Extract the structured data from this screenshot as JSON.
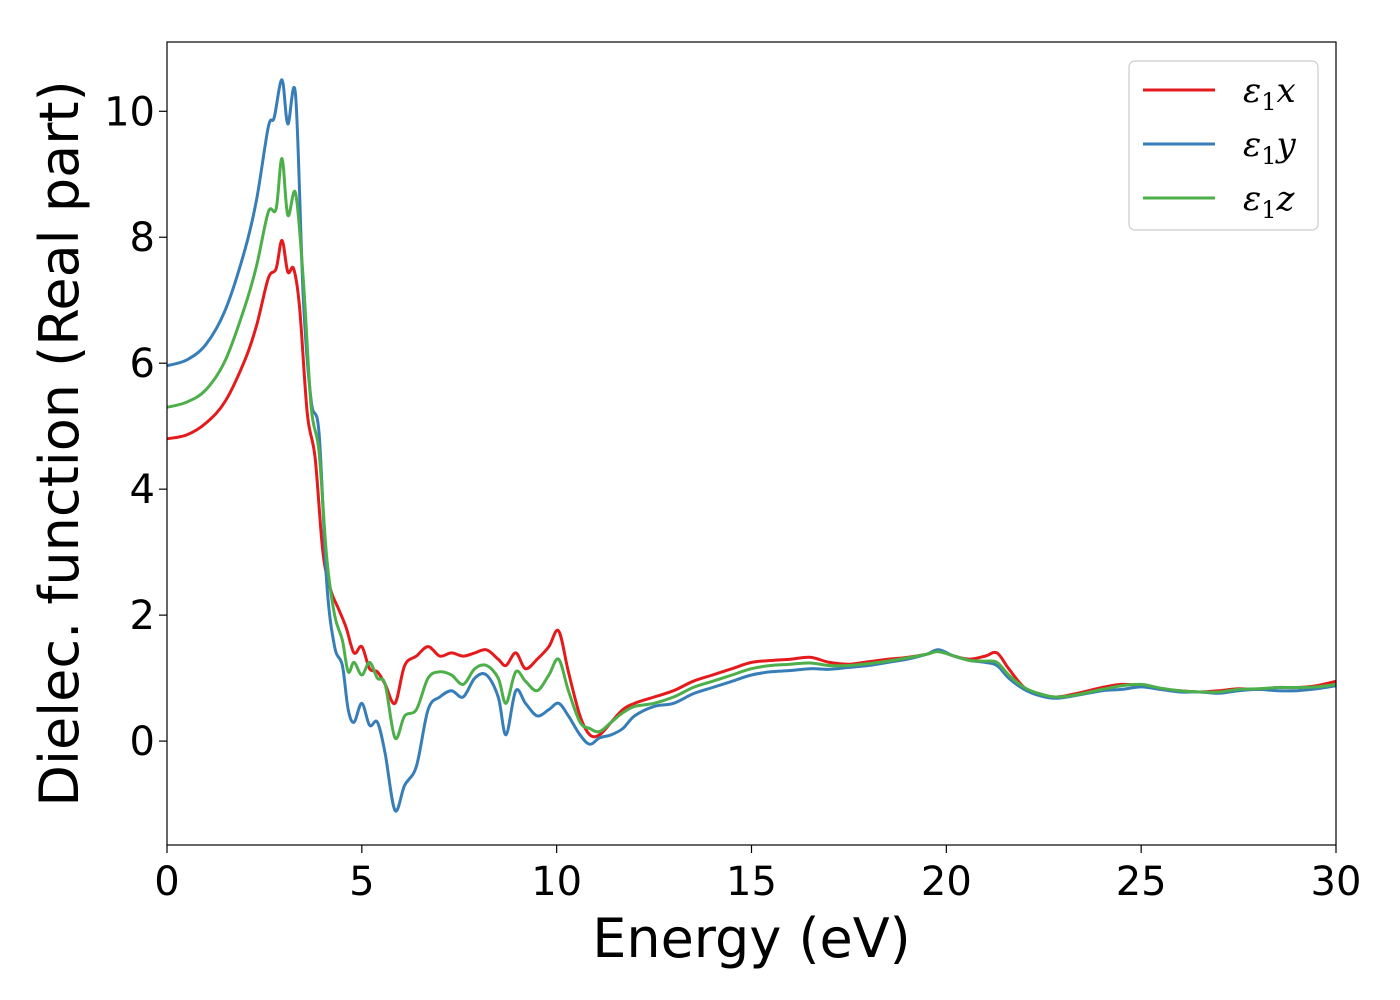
{
  "chart_data": {
    "type": "line",
    "title": "",
    "xlabel": "Energy (eV)",
    "ylabel": "Dielec. function (Real part)",
    "xlim": [
      0,
      30
    ],
    "ylim": [
      -1.65,
      11.1
    ],
    "xticks": [
      0,
      5,
      10,
      15,
      20,
      25,
      30
    ],
    "yticks": [
      0,
      2,
      4,
      6,
      8,
      10
    ],
    "grid": false,
    "legend_position": "top-right",
    "series": [
      {
        "name": "ε1x",
        "legend": {
          "base": "ε",
          "sub": "1",
          "axis": "x"
        },
        "color": "#e41a1c",
        "x": [
          0,
          0.5,
          1.0,
          1.5,
          2.0,
          2.3,
          2.6,
          2.8,
          2.95,
          3.1,
          3.25,
          3.4,
          3.6,
          3.8,
          4.0,
          4.2,
          4.4,
          4.6,
          4.8,
          5.0,
          5.2,
          5.4,
          5.6,
          5.85,
          6.1,
          6.4,
          6.7,
          7.0,
          7.3,
          7.6,
          7.9,
          8.2,
          8.5,
          8.7,
          8.95,
          9.2,
          9.5,
          9.8,
          10.05,
          10.3,
          10.6,
          10.85,
          11.1,
          11.4,
          11.7,
          12.0,
          12.5,
          13.0,
          13.5,
          14.0,
          14.5,
          15.0,
          15.5,
          16.0,
          16.5,
          17.0,
          17.5,
          18.0,
          18.5,
          19.0,
          19.5,
          19.8,
          20.2,
          20.6,
          21.0,
          21.3,
          21.6,
          22.0,
          22.4,
          22.8,
          23.3,
          24.0,
          24.5,
          25.0,
          25.5,
          26.0,
          26.5,
          27.0,
          27.5,
          28.0,
          28.5,
          29.0,
          29.5,
          30.0
        ],
        "values": [
          4.8,
          4.86,
          5.05,
          5.4,
          6.05,
          6.6,
          7.35,
          7.5,
          7.95,
          7.45,
          7.5,
          6.9,
          5.2,
          4.5,
          3.0,
          2.4,
          2.1,
          1.8,
          1.4,
          1.5,
          1.15,
          1.1,
          0.9,
          0.6,
          1.2,
          1.35,
          1.5,
          1.35,
          1.4,
          1.35,
          1.4,
          1.45,
          1.3,
          1.2,
          1.4,
          1.15,
          1.3,
          1.5,
          1.75,
          1.1,
          0.4,
          0.1,
          0.1,
          0.3,
          0.5,
          0.6,
          0.7,
          0.8,
          0.95,
          1.05,
          1.15,
          1.25,
          1.28,
          1.3,
          1.33,
          1.25,
          1.22,
          1.26,
          1.3,
          1.33,
          1.38,
          1.43,
          1.35,
          1.3,
          1.35,
          1.4,
          1.15,
          0.85,
          0.75,
          0.7,
          0.75,
          0.85,
          0.9,
          0.88,
          0.82,
          0.8,
          0.78,
          0.8,
          0.83,
          0.82,
          0.85,
          0.85,
          0.88,
          0.95
        ]
      },
      {
        "name": "ε1y",
        "legend": {
          "base": "ε",
          "sub": "1",
          "axis": "y"
        },
        "color": "#377eb8",
        "x": [
          0,
          0.5,
          1.0,
          1.5,
          2.0,
          2.3,
          2.6,
          2.75,
          2.95,
          3.1,
          3.3,
          3.5,
          3.7,
          3.9,
          4.1,
          4.3,
          4.5,
          4.65,
          4.8,
          5.0,
          5.2,
          5.4,
          5.6,
          5.85,
          6.1,
          6.4,
          6.7,
          7.0,
          7.3,
          7.6,
          7.9,
          8.2,
          8.5,
          8.7,
          8.95,
          9.2,
          9.5,
          9.8,
          10.05,
          10.3,
          10.6,
          10.85,
          11.1,
          11.4,
          11.7,
          12.0,
          12.5,
          13.0,
          13.5,
          14.0,
          14.5,
          15.0,
          15.5,
          16.0,
          16.5,
          17.0,
          17.5,
          18.0,
          18.5,
          19.0,
          19.5,
          19.8,
          20.2,
          20.6,
          21.0,
          21.3,
          21.6,
          22.0,
          22.4,
          22.8,
          23.3,
          24.0,
          24.5,
          25.0,
          25.5,
          26.0,
          26.5,
          27.0,
          27.5,
          28.0,
          28.5,
          29.0,
          29.5,
          30.0
        ],
        "values": [
          5.96,
          6.05,
          6.3,
          6.85,
          7.8,
          8.6,
          9.75,
          9.9,
          10.5,
          9.8,
          10.25,
          7.0,
          5.4,
          4.9,
          2.5,
          1.5,
          1.2,
          0.5,
          0.3,
          0.6,
          0.25,
          0.3,
          -0.2,
          -1.1,
          -0.7,
          -0.4,
          0.5,
          0.7,
          0.8,
          0.7,
          1.0,
          1.05,
          0.7,
          0.1,
          0.8,
          0.6,
          0.4,
          0.5,
          0.6,
          0.4,
          0.1,
          -0.05,
          0.05,
          0.1,
          0.2,
          0.4,
          0.55,
          0.6,
          0.75,
          0.85,
          0.95,
          1.05,
          1.1,
          1.12,
          1.15,
          1.14,
          1.17,
          1.2,
          1.25,
          1.3,
          1.38,
          1.45,
          1.35,
          1.28,
          1.25,
          1.2,
          1.0,
          0.82,
          0.72,
          0.68,
          0.72,
          0.8,
          0.82,
          0.86,
          0.82,
          0.78,
          0.78,
          0.76,
          0.8,
          0.82,
          0.8,
          0.8,
          0.83,
          0.88
        ]
      },
      {
        "name": "ε1z",
        "legend": {
          "base": "ε",
          "sub": "1",
          "axis": "z"
        },
        "color": "#4daf4a",
        "x": [
          0,
          0.5,
          1.0,
          1.5,
          2.0,
          2.3,
          2.6,
          2.8,
          2.95,
          3.1,
          3.3,
          3.5,
          3.7,
          3.9,
          4.1,
          4.3,
          4.5,
          4.65,
          4.8,
          5.0,
          5.2,
          5.4,
          5.6,
          5.85,
          6.1,
          6.4,
          6.7,
          7.0,
          7.3,
          7.6,
          7.9,
          8.2,
          8.5,
          8.7,
          8.95,
          9.2,
          9.5,
          9.8,
          10.05,
          10.3,
          10.6,
          10.85,
          11.1,
          11.4,
          11.7,
          12.0,
          12.5,
          13.0,
          13.5,
          14.0,
          14.5,
          15.0,
          15.5,
          16.0,
          16.5,
          17.0,
          17.5,
          18.0,
          18.5,
          19.0,
          19.5,
          19.8,
          20.2,
          20.6,
          21.0,
          21.3,
          21.6,
          22.0,
          22.4,
          22.8,
          23.3,
          24.0,
          24.5,
          25.0,
          25.5,
          26.0,
          26.5,
          27.0,
          27.5,
          28.0,
          28.5,
          29.0,
          29.5,
          30.0
        ],
        "values": [
          5.3,
          5.38,
          5.58,
          6.05,
          6.9,
          7.55,
          8.4,
          8.45,
          9.25,
          8.35,
          8.7,
          7.3,
          5.3,
          4.6,
          2.9,
          2.0,
          1.6,
          1.1,
          1.25,
          1.05,
          1.25,
          1.0,
          0.9,
          0.05,
          0.4,
          0.5,
          1.0,
          1.1,
          1.05,
          0.9,
          1.15,
          1.2,
          1.0,
          0.6,
          1.1,
          0.95,
          0.8,
          1.05,
          1.3,
          0.8,
          0.3,
          0.2,
          0.15,
          0.3,
          0.45,
          0.55,
          0.6,
          0.7,
          0.85,
          0.95,
          1.05,
          1.15,
          1.2,
          1.22,
          1.24,
          1.2,
          1.2,
          1.23,
          1.27,
          1.32,
          1.38,
          1.42,
          1.35,
          1.28,
          1.27,
          1.25,
          1.05,
          0.85,
          0.75,
          0.7,
          0.73,
          0.82,
          0.88,
          0.9,
          0.84,
          0.8,
          0.78,
          0.78,
          0.82,
          0.83,
          0.85,
          0.85,
          0.86,
          0.9
        ]
      }
    ]
  }
}
